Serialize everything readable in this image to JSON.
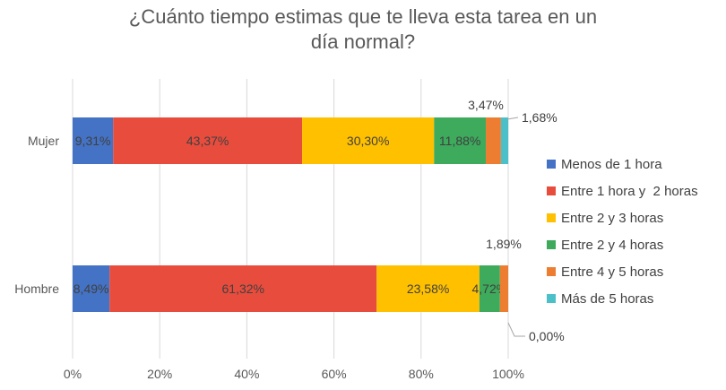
{
  "chart_data": {
    "type": "bar",
    "orientation": "horizontal",
    "stacked": true,
    "title_line1": "¿Cuánto tiempo estimas que te lleva esta tarea en un",
    "title_line2": "día normal?",
    "categories": [
      "Mujer",
      "Hombre"
    ],
    "series": [
      {
        "name": "Menos de 1 hora",
        "color": "#4472C4",
        "values": [
          9.31,
          8.49
        ],
        "labels": [
          "9,31%",
          "8,49%"
        ]
      },
      {
        "name": "Entre 1 hora y  2 horas",
        "color": "#E84C3D",
        "values": [
          43.37,
          61.32
        ],
        "labels": [
          "43,37%",
          "61,32%"
        ]
      },
      {
        "name": "Entre 2 y 3 horas",
        "color": "#FFC000",
        "values": [
          30.3,
          23.58
        ],
        "labels": [
          "30,30%",
          "23,58%"
        ]
      },
      {
        "name": "Entre 2 y 4 horas",
        "color": "#3DAA5C",
        "values": [
          11.88,
          4.72
        ],
        "labels": [
          "11,88%",
          "4,72%"
        ]
      },
      {
        "name": "Entre 4 y 5 horas",
        "color": "#ED7D31",
        "values": [
          3.47,
          1.89
        ],
        "labels": [
          "3,47%",
          "1,89%"
        ]
      },
      {
        "name": "Más de 5 horas",
        "color": "#4BC0C8",
        "values": [
          1.68,
          0.0
        ],
        "labels": [
          "1,68%",
          "0,00%"
        ]
      }
    ],
    "xlim": [
      0,
      100
    ],
    "x_ticks": [
      "0%",
      "20%",
      "40%",
      "60%",
      "80%",
      "100%"
    ],
    "grid": true,
    "legend_position": "right"
  }
}
